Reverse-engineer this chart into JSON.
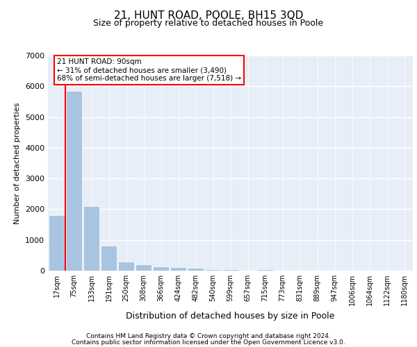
{
  "title1": "21, HUNT ROAD, POOLE, BH15 3QD",
  "title2": "Size of property relative to detached houses in Poole",
  "xlabel": "Distribution of detached houses by size in Poole",
  "ylabel": "Number of detached properties",
  "bin_labels": [
    "17sqm",
    "75sqm",
    "133sqm",
    "191sqm",
    "250sqm",
    "308sqm",
    "366sqm",
    "424sqm",
    "482sqm",
    "540sqm",
    "599sqm",
    "657sqm",
    "715sqm",
    "773sqm",
    "831sqm",
    "889sqm",
    "947sqm",
    "1006sqm",
    "1064sqm",
    "1122sqm",
    "1180sqm"
  ],
  "bar_values": [
    1800,
    5850,
    2100,
    820,
    300,
    195,
    145,
    105,
    100,
    55,
    55,
    0,
    50,
    0,
    0,
    0,
    0,
    0,
    0,
    0,
    0
  ],
  "bar_color": "#a8c4e0",
  "bar_edge_color": "#ffffff",
  "background_color": "#e8eef8",
  "grid_color": "#ffffff",
  "red_line_index": 1,
  "annotation_text": "21 HUNT ROAD: 90sqm\n← 31% of detached houses are smaller (3,490)\n68% of semi-detached houses are larger (7,518) →",
  "ylim": [
    0,
    7000
  ],
  "yticks": [
    0,
    1000,
    2000,
    3000,
    4000,
    5000,
    6000,
    7000
  ],
  "footer1": "Contains HM Land Registry data © Crown copyright and database right 2024.",
  "footer2": "Contains public sector information licensed under the Open Government Licence v3.0."
}
